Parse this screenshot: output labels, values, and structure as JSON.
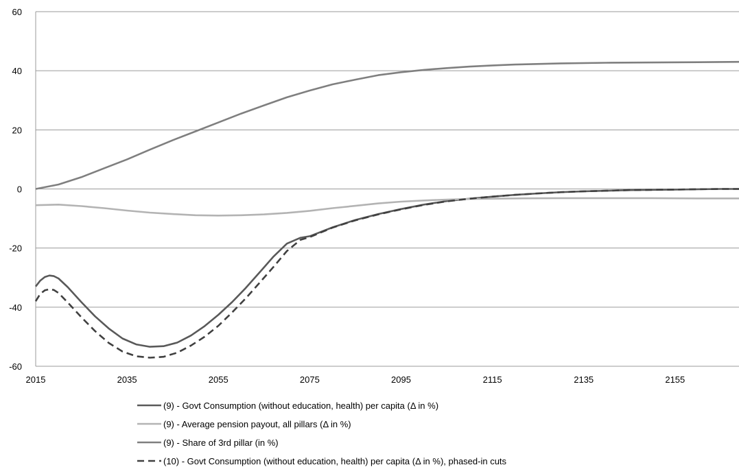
{
  "chart_data": {
    "type": "line",
    "title": "",
    "xlabel": "",
    "ylabel": "",
    "xlim": [
      2015,
      2169
    ],
    "ylim": [
      -60,
      60
    ],
    "x_ticks": [
      "2015",
      "2035",
      "2055",
      "2075",
      "2095",
      "2115",
      "2135",
      "2155"
    ],
    "y_ticks": [
      "60",
      "40",
      "20",
      "0",
      "-20",
      "-40",
      "-60"
    ],
    "grid": "horizontal",
    "legend_position": "bottom",
    "series": [
      {
        "name": "(9) - Govt Consumption (without education, health) per capita (Δ in %)",
        "color": "#595959",
        "dash": "solid",
        "x": [
          2015,
          2016,
          2017,
          2018,
          2019,
          2020,
          2022,
          2025,
          2028,
          2031,
          2034,
          2037,
          2040,
          2043,
          2046,
          2049,
          2052,
          2055,
          2058,
          2061,
          2064,
          2067,
          2070,
          2073,
          2075,
          2080,
          2085,
          2090,
          2095,
          2100,
          2105,
          2110,
          2115,
          2120,
          2125,
          2130,
          2135,
          2140,
          2145,
          2150,
          2155,
          2160,
          2165,
          2169
        ],
        "y": [
          -33,
          -31,
          -29.8,
          -29.3,
          -29.5,
          -30.3,
          -33.2,
          -38.3,
          -43.1,
          -47.2,
          -50.6,
          -52.6,
          -53.4,
          -53.2,
          -52,
          -49.6,
          -46.4,
          -42.6,
          -38.3,
          -33.5,
          -28.3,
          -23,
          -18.5,
          -16.5,
          -16,
          -13,
          -10.5,
          -8.5,
          -6.8,
          -5.3,
          -4.1,
          -3.3,
          -2.6,
          -2,
          -1.5,
          -1.1,
          -0.8,
          -0.6,
          -0.4,
          -0.3,
          -0.2,
          -0.1,
          0,
          0
        ]
      },
      {
        "name": "(9) - Average pension payout, all pillars (Δ in %)",
        "color": "#b3b3b3",
        "dash": "solid",
        "x": [
          2015,
          2020,
          2025,
          2030,
          2035,
          2040,
          2045,
          2050,
          2055,
          2060,
          2065,
          2070,
          2075,
          2080,
          2085,
          2090,
          2095,
          2100,
          2105,
          2110,
          2115,
          2120,
          2130,
          2140,
          2150,
          2160,
          2169
        ],
        "y": [
          -5.5,
          -5.3,
          -5.8,
          -6.5,
          -7.3,
          -8,
          -8.5,
          -8.9,
          -9,
          -8.9,
          -8.6,
          -8.1,
          -7.4,
          -6.5,
          -5.7,
          -4.9,
          -4.3,
          -3.9,
          -3.6,
          -3.4,
          -3.3,
          -3.2,
          -3.1,
          -3.1,
          -3.1,
          -3.2,
          -3.2
        ]
      },
      {
        "name": "(9) - Share of 3rd pillar (in %)",
        "color": "#7f7f7f",
        "dash": "solid",
        "x": [
          2015,
          2020,
          2025,
          2030,
          2035,
          2040,
          2045,
          2050,
          2055,
          2060,
          2065,
          2070,
          2075,
          2080,
          2085,
          2090,
          2095,
          2100,
          2105,
          2110,
          2115,
          2120,
          2130,
          2140,
          2150,
          2160,
          2169
        ],
        "y": [
          0,
          1.5,
          4,
          7,
          10,
          13.3,
          16.5,
          19.5,
          22.5,
          25.5,
          28.3,
          31,
          33.3,
          35.4,
          37,
          38.5,
          39.5,
          40.3,
          40.9,
          41.4,
          41.8,
          42.1,
          42.5,
          42.7,
          42.8,
          42.9,
          43
        ]
      },
      {
        "name": "(10) - Govt Consumption (without education, health) per capita (Δ in %), phased-in cuts",
        "color": "#404040",
        "dash": "dashed",
        "x": [
          2015,
          2016,
          2017,
          2018,
          2019,
          2020,
          2022,
          2025,
          2028,
          2031,
          2034,
          2037,
          2040,
          2043,
          2046,
          2049,
          2052,
          2055,
          2058,
          2061,
          2064,
          2067,
          2070,
          2073,
          2075,
          2080,
          2085,
          2090,
          2095,
          2100,
          2105,
          2110,
          2115,
          2120,
          2125,
          2130,
          2135,
          2140,
          2145,
          2150,
          2155,
          2160,
          2165,
          2169
        ],
        "y": [
          -38,
          -35.5,
          -34.3,
          -33.9,
          -34.2,
          -35.2,
          -38.4,
          -43.4,
          -48.1,
          -52.1,
          -55,
          -56.6,
          -57.1,
          -56.8,
          -55.4,
          -53,
          -50,
          -46.3,
          -41.8,
          -37,
          -31.8,
          -26.5,
          -21,
          -17.2,
          -16.3,
          -13.1,
          -10.6,
          -8.6,
          -6.9,
          -5.4,
          -4.2,
          -3.3,
          -2.6,
          -2,
          -1.5,
          -1.1,
          -0.8,
          -0.6,
          -0.4,
          -0.3,
          -0.2,
          -0.1,
          0,
          0
        ]
      }
    ]
  }
}
